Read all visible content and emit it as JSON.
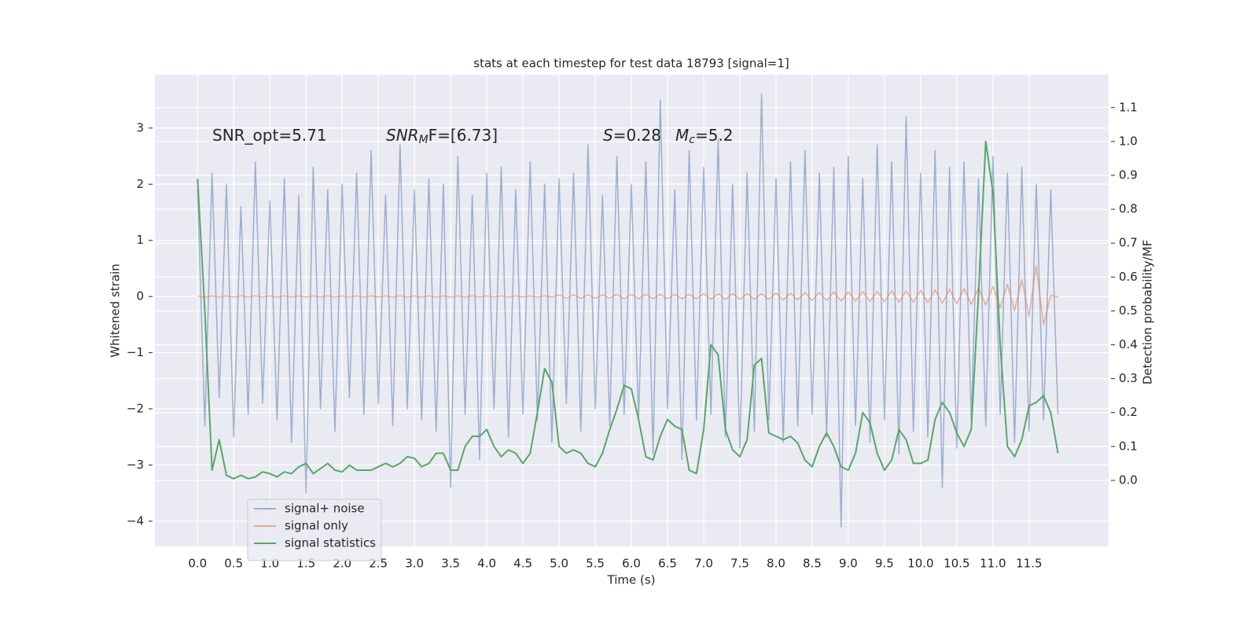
{
  "chart_data": {
    "type": "line",
    "title": "stats at each timestep for test data 18793 [signal=1]",
    "xlabel": "Time (s)",
    "ylabel": "Whitened strain",
    "y2label": "Detection probability/MF",
    "xlim": [
      -0.59,
      12.6
    ],
    "ylim": [
      -4.45,
      3.95
    ],
    "y2lim": [
      -0.195,
      1.197
    ],
    "xticks": [
      {
        "value": 0,
        "label": "0.0"
      },
      0.5,
      {
        "value": 1,
        "label": "1.0"
      },
      1.5,
      {
        "value": 2,
        "label": "2.0"
      },
      2.5,
      {
        "value": 3,
        "label": "3.0"
      },
      3.5,
      {
        "value": 4,
        "label": "4.0"
      },
      4.5,
      {
        "value": 5,
        "label": "5.0"
      },
      5.5,
      {
        "value": 6,
        "label": "6.0"
      },
      6.5,
      {
        "value": 7,
        "label": "7.0"
      },
      7.5,
      {
        "value": 8,
        "label": "8.0"
      },
      8.5,
      {
        "value": 9,
        "label": "9.0"
      },
      9.5,
      {
        "value": 10,
        "label": "10.0"
      },
      10.5,
      {
        "value": 11,
        "label": "11.0"
      },
      11.5
    ],
    "yticks": [
      {
        "value": -4,
        "label": "−4"
      },
      {
        "value": -3,
        "label": "−3"
      },
      {
        "value": -2,
        "label": "−2"
      },
      {
        "value": -1,
        "label": "−1"
      },
      0,
      1,
      2,
      3
    ],
    "y2ticks": [
      {
        "value": 0,
        "label": "0.0"
      },
      0.1,
      0.2,
      0.3,
      0.4,
      0.5,
      0.6,
      0.7,
      0.8,
      0.9,
      {
        "value": 1,
        "label": "1.0"
      },
      1.1
    ],
    "grid": true,
    "legend": "lower left",
    "annotations": [
      [
        {
          "text": "SNR_opt=5.71",
          "style": "normal"
        }
      ],
      [
        {
          "text": "SNR",
          "style": "italic"
        },
        {
          "text": "M",
          "style": "sub"
        },
        {
          "text": "F=[6.73]",
          "style": "normal"
        }
      ],
      [
        {
          "text": "S",
          "style": "italic"
        },
        {
          "text": "=0.28",
          "style": "normal"
        }
      ],
      [
        {
          "text": "M",
          "style": "italic"
        },
        {
          "text": "c",
          "style": "sub"
        },
        {
          "text": "=5.2",
          "style": "normal"
        }
      ]
    ],
    "x": [
      0.0,
      0.1,
      0.2,
      0.3,
      0.4,
      0.5,
      0.6,
      0.7,
      0.8,
      0.9,
      1.0,
      1.1,
      1.2,
      1.3,
      1.4,
      1.5,
      1.6,
      1.7,
      1.8,
      1.9,
      2.0,
      2.1,
      2.2,
      2.3,
      2.4,
      2.5,
      2.6,
      2.7,
      2.8,
      2.9,
      3.0,
      3.1,
      3.2,
      3.3,
      3.4,
      3.5,
      3.6,
      3.7,
      3.8,
      3.9,
      4.0,
      4.1,
      4.2,
      4.3,
      4.4,
      4.5,
      4.6,
      4.7,
      4.8,
      4.9,
      5.0,
      5.1,
      5.2,
      5.3,
      5.4,
      5.5,
      5.6,
      5.7,
      5.8,
      5.9,
      6.0,
      6.1,
      6.2,
      6.3,
      6.4,
      6.5,
      6.6,
      6.7,
      6.8,
      6.9,
      7.0,
      7.1,
      7.2,
      7.3,
      7.4,
      7.5,
      7.6,
      7.7,
      7.8,
      7.9,
      8.0,
      8.1,
      8.2,
      8.3,
      8.4,
      8.5,
      8.6,
      8.7,
      8.8,
      8.9,
      9.0,
      9.1,
      9.2,
      9.3,
      9.4,
      9.5,
      9.6,
      9.7,
      9.8,
      9.9,
      10.0,
      10.1,
      10.2,
      10.3,
      10.4,
      10.5,
      10.6,
      10.7,
      10.8,
      10.9,
      11.0,
      11.1,
      11.2,
      11.3,
      11.4,
      11.5,
      11.6,
      11.7,
      11.8,
      11.9
    ],
    "series": [
      {
        "name": "signal+ noise",
        "color": "#4c72b0",
        "opacity": 0.5,
        "values": [
          1.9,
          -2.3,
          2.2,
          -1.8,
          2.0,
          -2.5,
          1.6,
          -2.1,
          2.4,
          -1.9,
          1.7,
          -2.2,
          2.1,
          -2.6,
          1.8,
          -3.5,
          2.3,
          -2.0,
          1.9,
          -2.4,
          2.0,
          -1.8,
          2.2,
          -2.1,
          2.6,
          -1.9,
          1.8,
          -2.3,
          2.7,
          -2.0,
          1.9,
          -2.2,
          2.1,
          -2.4,
          2.0,
          -3.4,
          2.5,
          -2.1,
          1.8,
          -2.9,
          2.2,
          -2.0,
          2.3,
          -2.5,
          1.9,
          -2.1,
          2.4,
          -2.2,
          2.0,
          -2.6,
          2.1,
          -1.9,
          2.2,
          -2.4,
          2.7,
          -2.0,
          1.8,
          -2.3,
          2.5,
          -2.1,
          2.0,
          -2.2,
          2.4,
          -2.8,
          3.5,
          -2.0,
          1.9,
          -2.9,
          2.6,
          -2.2,
          2.3,
          -2.1,
          2.8,
          -2.5,
          2.0,
          -2.7,
          2.2,
          -2.4,
          3.6,
          -2.2,
          2.1,
          -2.6,
          2.4,
          -2.3,
          2.6,
          -2.1,
          2.2,
          -2.5,
          2.3,
          -4.1,
          2.5,
          -2.3,
          2.1,
          -2.6,
          2.7,
          -2.2,
          2.4,
          -2.8,
          3.2,
          -2.4,
          2.2,
          -2.5,
          2.6,
          -3.4,
          2.3,
          -2.7,
          2.4,
          -2.2,
          2.1,
          -2.3,
          2.5,
          -2.1,
          2.2,
          -2.6,
          2.3,
          -2.4,
          2.0,
          -2.2,
          1.9,
          -2.1
        ]
      },
      {
        "name": "signal only",
        "color": "#dd8452",
        "opacity": 0.6,
        "values": [
          0.01,
          -0.01,
          0.01,
          -0.01,
          0.01,
          -0.01,
          0.01,
          -0.01,
          0.01,
          -0.01,
          0.01,
          -0.01,
          0.01,
          -0.01,
          0.01,
          -0.01,
          0.01,
          -0.01,
          0.01,
          -0.01,
          0.01,
          -0.01,
          0.01,
          -0.01,
          0.01,
          -0.01,
          0.01,
          -0.01,
          0.01,
          -0.01,
          0.01,
          -0.01,
          0.01,
          -0.01,
          0.01,
          -0.01,
          0.01,
          -0.01,
          0.01,
          -0.01,
          0.01,
          -0.01,
          0.01,
          -0.01,
          0.01,
          -0.01,
          0.01,
          -0.01,
          0.01,
          -0.01,
          0.03,
          -0.03,
          0.03,
          -0.03,
          0.03,
          -0.03,
          0.03,
          -0.03,
          0.04,
          -0.04,
          0.04,
          -0.04,
          0.04,
          -0.04,
          0.04,
          -0.04,
          0.04,
          -0.04,
          0.04,
          -0.04,
          0.05,
          -0.05,
          0.05,
          -0.05,
          0.05,
          -0.05,
          0.05,
          -0.05,
          0.05,
          -0.05,
          0.06,
          -0.06,
          0.06,
          -0.06,
          0.07,
          -0.07,
          0.07,
          -0.07,
          0.08,
          -0.08,
          0.08,
          -0.08,
          0.09,
          -0.09,
          0.09,
          -0.09,
          0.1,
          -0.1,
          0.1,
          -0.1,
          0.11,
          -0.11,
          0.12,
          -0.12,
          0.13,
          -0.13,
          0.14,
          -0.14,
          0.15,
          -0.15,
          0.18,
          -0.2,
          0.22,
          -0.25,
          0.3,
          -0.35,
          0.55,
          -0.5,
          0.02,
          -0.01
        ]
      },
      {
        "name": "signal statistics",
        "color": "#55a868",
        "opacity": 1,
        "axis": "y2",
        "values": [
          0.89,
          0.5,
          0.03,
          0.12,
          0.015,
          0.005,
          0.015,
          0.005,
          0.01,
          0.025,
          0.02,
          0.01,
          0.025,
          0.02,
          0.04,
          0.05,
          0.02,
          0.035,
          0.05,
          0.03,
          0.025,
          0.045,
          0.03,
          0.03,
          0.03,
          0.04,
          0.05,
          0.04,
          0.05,
          0.07,
          0.065,
          0.04,
          0.05,
          0.08,
          0.08,
          0.03,
          0.03,
          0.1,
          0.13,
          0.13,
          0.15,
          0.1,
          0.07,
          0.09,
          0.08,
          0.05,
          0.08,
          0.2,
          0.33,
          0.29,
          0.1,
          0.08,
          0.09,
          0.08,
          0.05,
          0.04,
          0.08,
          0.15,
          0.21,
          0.28,
          0.27,
          0.18,
          0.07,
          0.06,
          0.13,
          0.18,
          0.16,
          0.15,
          0.03,
          0.02,
          0.15,
          0.4,
          0.37,
          0.15,
          0.09,
          0.07,
          0.12,
          0.34,
          0.36,
          0.14,
          0.13,
          0.12,
          0.13,
          0.11,
          0.06,
          0.04,
          0.1,
          0.14,
          0.1,
          0.04,
          0.03,
          0.08,
          0.2,
          0.17,
          0.08,
          0.03,
          0.06,
          0.15,
          0.12,
          0.05,
          0.05,
          0.06,
          0.18,
          0.23,
          0.2,
          0.14,
          0.1,
          0.15,
          0.55,
          1.0,
          0.85,
          0.4,
          0.1,
          0.07,
          0.12,
          0.22,
          0.23,
          0.25,
          0.2,
          0.08
        ]
      }
    ]
  }
}
